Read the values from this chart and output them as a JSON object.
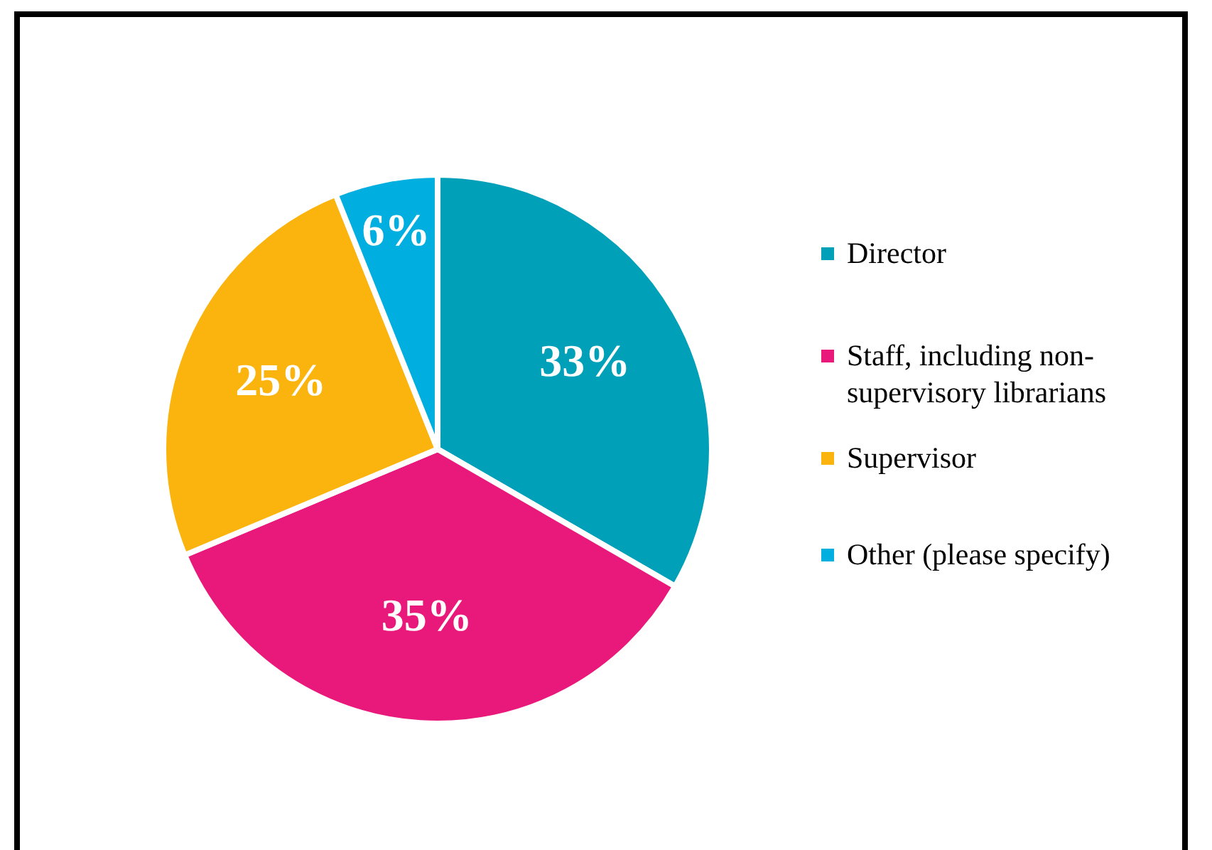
{
  "chart_data": {
    "type": "pie",
    "categories": [
      "Director",
      "Staff, including non-supervisory librarians",
      "Supervisor",
      "Other (please specify)"
    ],
    "values": [
      33,
      35,
      25,
      6
    ],
    "colors": [
      "#00a0b8",
      "#e8197a",
      "#fbb40e",
      "#00aee0"
    ],
    "value_labels": [
      "33%",
      "35%",
      "25%",
      "6%"
    ],
    "legend": "right"
  }
}
